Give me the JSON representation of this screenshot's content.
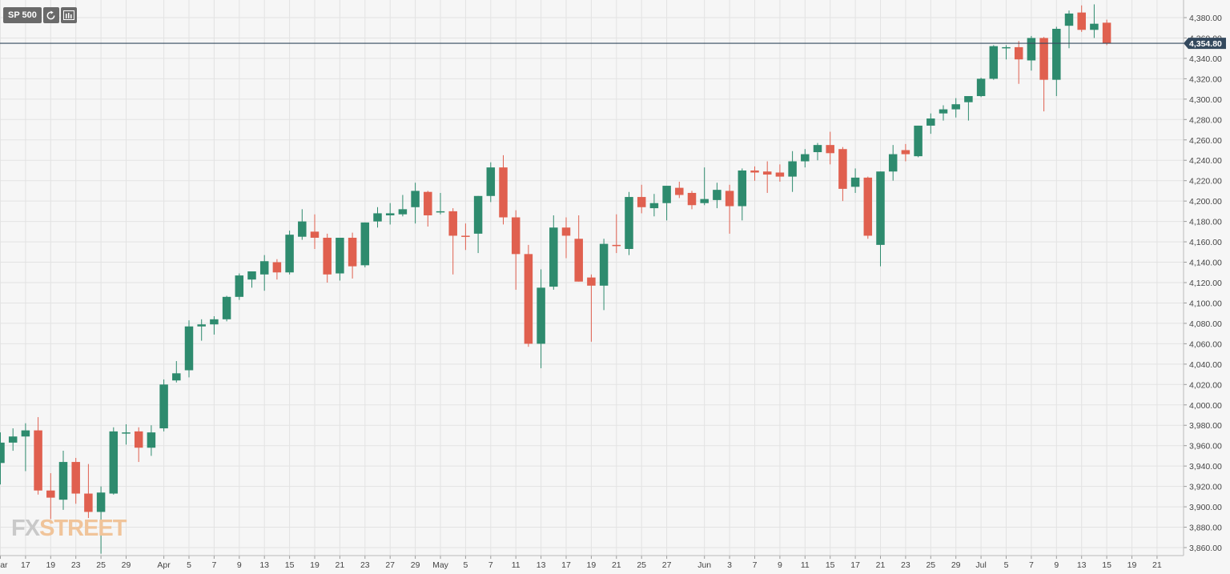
{
  "toolbar": {
    "symbol": "SP 500",
    "refresh_icon": "refresh-icon",
    "indicator_icon": "chart-settings-icon"
  },
  "logo": {
    "part1": "FX",
    "part2": "STREET"
  },
  "colors": {
    "up": "#2e8b6e",
    "down": "#e0604f",
    "price_line": "#34495e",
    "grid": "#e3e3e3",
    "text": "#444444"
  },
  "chart_data": {
    "type": "candlestick",
    "symbol": "SP 500",
    "current_price": 4354.8,
    "current_price_label": "4,354.80",
    "ylim": [
      3853,
      4395
    ],
    "y_ticks": [
      3860,
      3880,
      3900,
      3920,
      3940,
      3960,
      3980,
      4000,
      4020,
      4040,
      4060,
      4080,
      4100,
      4120,
      4140,
      4160,
      4180,
      4200,
      4220,
      4240,
      4260,
      4280,
      4300,
      4320,
      4340,
      4360,
      4380
    ],
    "y_tick_labels": [
      "3,860.00",
      "3,880.00",
      "3,900.00",
      "3,920.00",
      "3,940.00",
      "3,960.00",
      "3,980.00",
      "4,000.00",
      "4,020.00",
      "4,040.00",
      "4,060.00",
      "4,080.00",
      "4,100.00",
      "4,120.00",
      "4,140.00",
      "4,160.00",
      "4,180.00",
      "4,200.00",
      "4,220.00",
      "4,240.00",
      "4,260.00",
      "4,280.00",
      "4,300.00",
      "4,320.00",
      "4,340.00",
      "4,360.00",
      "4,380.00"
    ],
    "x_ticks": [
      {
        "label": "Mar",
        "index": 0
      },
      {
        "label": "17",
        "index": 2
      },
      {
        "label": "19",
        "index": 4
      },
      {
        "label": "23",
        "index": 6
      },
      {
        "label": "25",
        "index": 8
      },
      {
        "label": "29",
        "index": 10
      },
      {
        "label": "Apr",
        "index": 13
      },
      {
        "label": "5",
        "index": 15
      },
      {
        "label": "7",
        "index": 17
      },
      {
        "label": "9",
        "index": 19
      },
      {
        "label": "13",
        "index": 21
      },
      {
        "label": "15",
        "index": 23
      },
      {
        "label": "19",
        "index": 25
      },
      {
        "label": "21",
        "index": 27
      },
      {
        "label": "23",
        "index": 29
      },
      {
        "label": "27",
        "index": 31
      },
      {
        "label": "29",
        "index": 33
      },
      {
        "label": "May",
        "index": 35
      },
      {
        "label": "5",
        "index": 37
      },
      {
        "label": "7",
        "index": 39
      },
      {
        "label": "11",
        "index": 41
      },
      {
        "label": "13",
        "index": 43
      },
      {
        "label": "17",
        "index": 45
      },
      {
        "label": "19",
        "index": 47
      },
      {
        "label": "21",
        "index": 49
      },
      {
        "label": "25",
        "index": 51
      },
      {
        "label": "27",
        "index": 53
      },
      {
        "label": "Jun",
        "index": 56
      },
      {
        "label": "3",
        "index": 58
      },
      {
        "label": "7",
        "index": 60
      },
      {
        "label": "9",
        "index": 62
      },
      {
        "label": "11",
        "index": 64
      },
      {
        "label": "15",
        "index": 66
      },
      {
        "label": "17",
        "index": 68
      },
      {
        "label": "21",
        "index": 70
      },
      {
        "label": "23",
        "index": 72
      },
      {
        "label": "25",
        "index": 74
      },
      {
        "label": "29",
        "index": 76
      },
      {
        "label": "Jul",
        "index": 78
      },
      {
        "label": "5",
        "index": 80
      },
      {
        "label": "7",
        "index": 82
      },
      {
        "label": "9",
        "index": 84
      },
      {
        "label": "13",
        "index": 86
      },
      {
        "label": "15",
        "index": 88
      },
      {
        "label": "19",
        "index": 90
      },
      {
        "label": "21",
        "index": 92
      }
    ],
    "candles": [
      {
        "o": 3943,
        "h": 3973,
        "l": 3922,
        "c": 3963
      },
      {
        "o": 3963,
        "h": 3977,
        "l": 3955,
        "c": 3969
      },
      {
        "o": 3969,
        "h": 3982,
        "l": 3935,
        "c": 3975
      },
      {
        "o": 3975,
        "h": 3988,
        "l": 3912,
        "c": 3916
      },
      {
        "o": 3916,
        "h": 3933,
        "l": 3888,
        "c": 3909
      },
      {
        "o": 3907,
        "h": 3955,
        "l": 3897,
        "c": 3944
      },
      {
        "o": 3944,
        "h": 3948,
        "l": 3903,
        "c": 3913
      },
      {
        "o": 3913,
        "h": 3942,
        "l": 3889,
        "c": 3895
      },
      {
        "o": 3895,
        "h": 3920,
        "l": 3854,
        "c": 3914
      },
      {
        "o": 3913,
        "h": 3978,
        "l": 3912,
        "c": 3974
      },
      {
        "o": 3972,
        "h": 3981,
        "l": 3961,
        "c": 3973
      },
      {
        "o": 3974,
        "h": 3978,
        "l": 3944,
        "c": 3958
      },
      {
        "o": 3958,
        "h": 3980,
        "l": 3950,
        "c": 3973
      },
      {
        "o": 3977,
        "h": 4025,
        "l": 3974,
        "c": 4020
      },
      {
        "o": 4024,
        "h": 4043,
        "l": 4022,
        "c": 4031
      },
      {
        "o": 4034,
        "h": 4083,
        "l": 4027,
        "c": 4077
      },
      {
        "o": 4077,
        "h": 4084,
        "l": 4063,
        "c": 4079
      },
      {
        "o": 4079,
        "h": 4087,
        "l": 4069,
        "c": 4084
      },
      {
        "o": 4084,
        "h": 4107,
        "l": 4082,
        "c": 4106
      },
      {
        "o": 4106,
        "h": 4129,
        "l": 4103,
        "c": 4127
      },
      {
        "o": 4123,
        "h": 4130,
        "l": 4115,
        "c": 4131
      },
      {
        "o": 4128,
        "h": 4147,
        "l": 4112,
        "c": 4141
      },
      {
        "o": 4140,
        "h": 4143,
        "l": 4123,
        "c": 4130
      },
      {
        "o": 4130,
        "h": 4171,
        "l": 4128,
        "c": 4167
      },
      {
        "o": 4165,
        "h": 4192,
        "l": 4162,
        "c": 4180
      },
      {
        "o": 4170,
        "h": 4187,
        "l": 4153,
        "c": 4164
      },
      {
        "o": 4164,
        "h": 4168,
        "l": 4120,
        "c": 4128
      },
      {
        "o": 4129,
        "h": 4164,
        "l": 4122,
        "c": 4164
      },
      {
        "o": 4164,
        "h": 4169,
        "l": 4124,
        "c": 4136
      },
      {
        "o": 4137,
        "h": 4179,
        "l": 4135,
        "c": 4179
      },
      {
        "o": 4180,
        "h": 4194,
        "l": 4174,
        "c": 4188
      },
      {
        "o": 4186,
        "h": 4198,
        "l": 4177,
        "c": 4188
      },
      {
        "o": 4187,
        "h": 4206,
        "l": 4185,
        "c": 4192
      },
      {
        "o": 4194,
        "h": 4218,
        "l": 4178,
        "c": 4210
      },
      {
        "o": 4209,
        "h": 4210,
        "l": 4175,
        "c": 4186
      },
      {
        "o": 4190,
        "h": 4208,
        "l": 4187,
        "c": 4190
      },
      {
        "o": 4190,
        "h": 4193,
        "l": 4128,
        "c": 4166
      },
      {
        "o": 4166,
        "h": 4178,
        "l": 4152,
        "c": 4165
      },
      {
        "o": 4168,
        "h": 4205,
        "l": 4149,
        "c": 4205
      },
      {
        "o": 4205,
        "h": 4238,
        "l": 4199,
        "c": 4233
      },
      {
        "o": 4233,
        "h": 4245,
        "l": 4177,
        "c": 4184
      },
      {
        "o": 4184,
        "h": 4191,
        "l": 4113,
        "c": 4148
      },
      {
        "o": 4148,
        "h": 4157,
        "l": 4057,
        "c": 4060
      },
      {
        "o": 4060,
        "h": 4133,
        "l": 4036,
        "c": 4115
      },
      {
        "o": 4116,
        "h": 4186,
        "l": 4113,
        "c": 4174
      },
      {
        "o": 4174,
        "h": 4184,
        "l": 4144,
        "c": 4166
      },
      {
        "o": 4163,
        "h": 4186,
        "l": 4121,
        "c": 4121
      },
      {
        "o": 4125,
        "h": 4128,
        "l": 4062,
        "c": 4117
      },
      {
        "o": 4117,
        "h": 4163,
        "l": 4093,
        "c": 4158
      },
      {
        "o": 4157,
        "h": 4187,
        "l": 4149,
        "c": 4156
      },
      {
        "o": 4153,
        "h": 4209,
        "l": 4147,
        "c": 4204
      },
      {
        "o": 4204,
        "h": 4216,
        "l": 4188,
        "c": 4194
      },
      {
        "o": 4193,
        "h": 4207,
        "l": 4185,
        "c": 4198
      },
      {
        "o": 4198,
        "h": 4215,
        "l": 4181,
        "c": 4215
      },
      {
        "o": 4213,
        "h": 4219,
        "l": 4203,
        "c": 4206
      },
      {
        "o": 4208,
        "h": 4210,
        "l": 4192,
        "c": 4196
      },
      {
        "o": 4198,
        "h": 4233,
        "l": 4196,
        "c": 4202
      },
      {
        "o": 4201,
        "h": 4218,
        "l": 4193,
        "c": 4211
      },
      {
        "o": 4210,
        "h": 4216,
        "l": 4168,
        "c": 4195
      },
      {
        "o": 4195,
        "h": 4232,
        "l": 4181,
        "c": 4230
      },
      {
        "o": 4230,
        "h": 4234,
        "l": 4220,
        "c": 4228
      },
      {
        "o": 4229,
        "h": 4239,
        "l": 4208,
        "c": 4226
      },
      {
        "o": 4228,
        "h": 4236,
        "l": 4219,
        "c": 4224
      },
      {
        "o": 4224,
        "h": 4249,
        "l": 4209,
        "c": 4239
      },
      {
        "o": 4239,
        "h": 4251,
        "l": 4233,
        "c": 4246
      },
      {
        "o": 4248,
        "h": 4257,
        "l": 4240,
        "c": 4255
      },
      {
        "o": 4255,
        "h": 4268,
        "l": 4236,
        "c": 4247
      },
      {
        "o": 4251,
        "h": 4253,
        "l": 4200,
        "c": 4212
      },
      {
        "o": 4214,
        "h": 4232,
        "l": 4208,
        "c": 4223
      },
      {
        "o": 4223,
        "h": 4224,
        "l": 4163,
        "c": 4166
      },
      {
        "o": 4157,
        "h": 4229,
        "l": 4136,
        "c": 4229
      },
      {
        "o": 4229,
        "h": 4255,
        "l": 4220,
        "c": 4246
      },
      {
        "o": 4250,
        "h": 4256,
        "l": 4239,
        "c": 4246
      },
      {
        "o": 4244,
        "h": 4274,
        "l": 4243,
        "c": 4274
      },
      {
        "o": 4274,
        "h": 4286,
        "l": 4266,
        "c": 4281
      },
      {
        "o": 4286,
        "h": 4294,
        "l": 4279,
        "c": 4290
      },
      {
        "o": 4290,
        "h": 4301,
        "l": 4282,
        "c": 4295
      },
      {
        "o": 4297,
        "h": 4302,
        "l": 4279,
        "c": 4303
      },
      {
        "o": 4303,
        "h": 4321,
        "l": 4302,
        "c": 4320
      },
      {
        "o": 4320,
        "h": 4353,
        "l": 4319,
        "c": 4352
      },
      {
        "o": 4350,
        "h": 4353,
        "l": 4339,
        "c": 4351
      },
      {
        "o": 4351,
        "h": 4357,
        "l": 4315,
        "c": 4339
      },
      {
        "o": 4338,
        "h": 4362,
        "l": 4328,
        "c": 4360
      },
      {
        "o": 4360,
        "h": 4361,
        "l": 4288,
        "c": 4319
      },
      {
        "o": 4319,
        "h": 4371,
        "l": 4303,
        "c": 4369
      },
      {
        "o": 4372,
        "h": 4387,
        "l": 4350,
        "c": 4384
      },
      {
        "o": 4385,
        "h": 4392,
        "l": 4366,
        "c": 4368
      },
      {
        "o": 4368,
        "h": 4393,
        "l": 4360,
        "c": 4374
      },
      {
        "o": 4375,
        "h": 4378,
        "l": 4353,
        "c": 4355
      }
    ]
  }
}
